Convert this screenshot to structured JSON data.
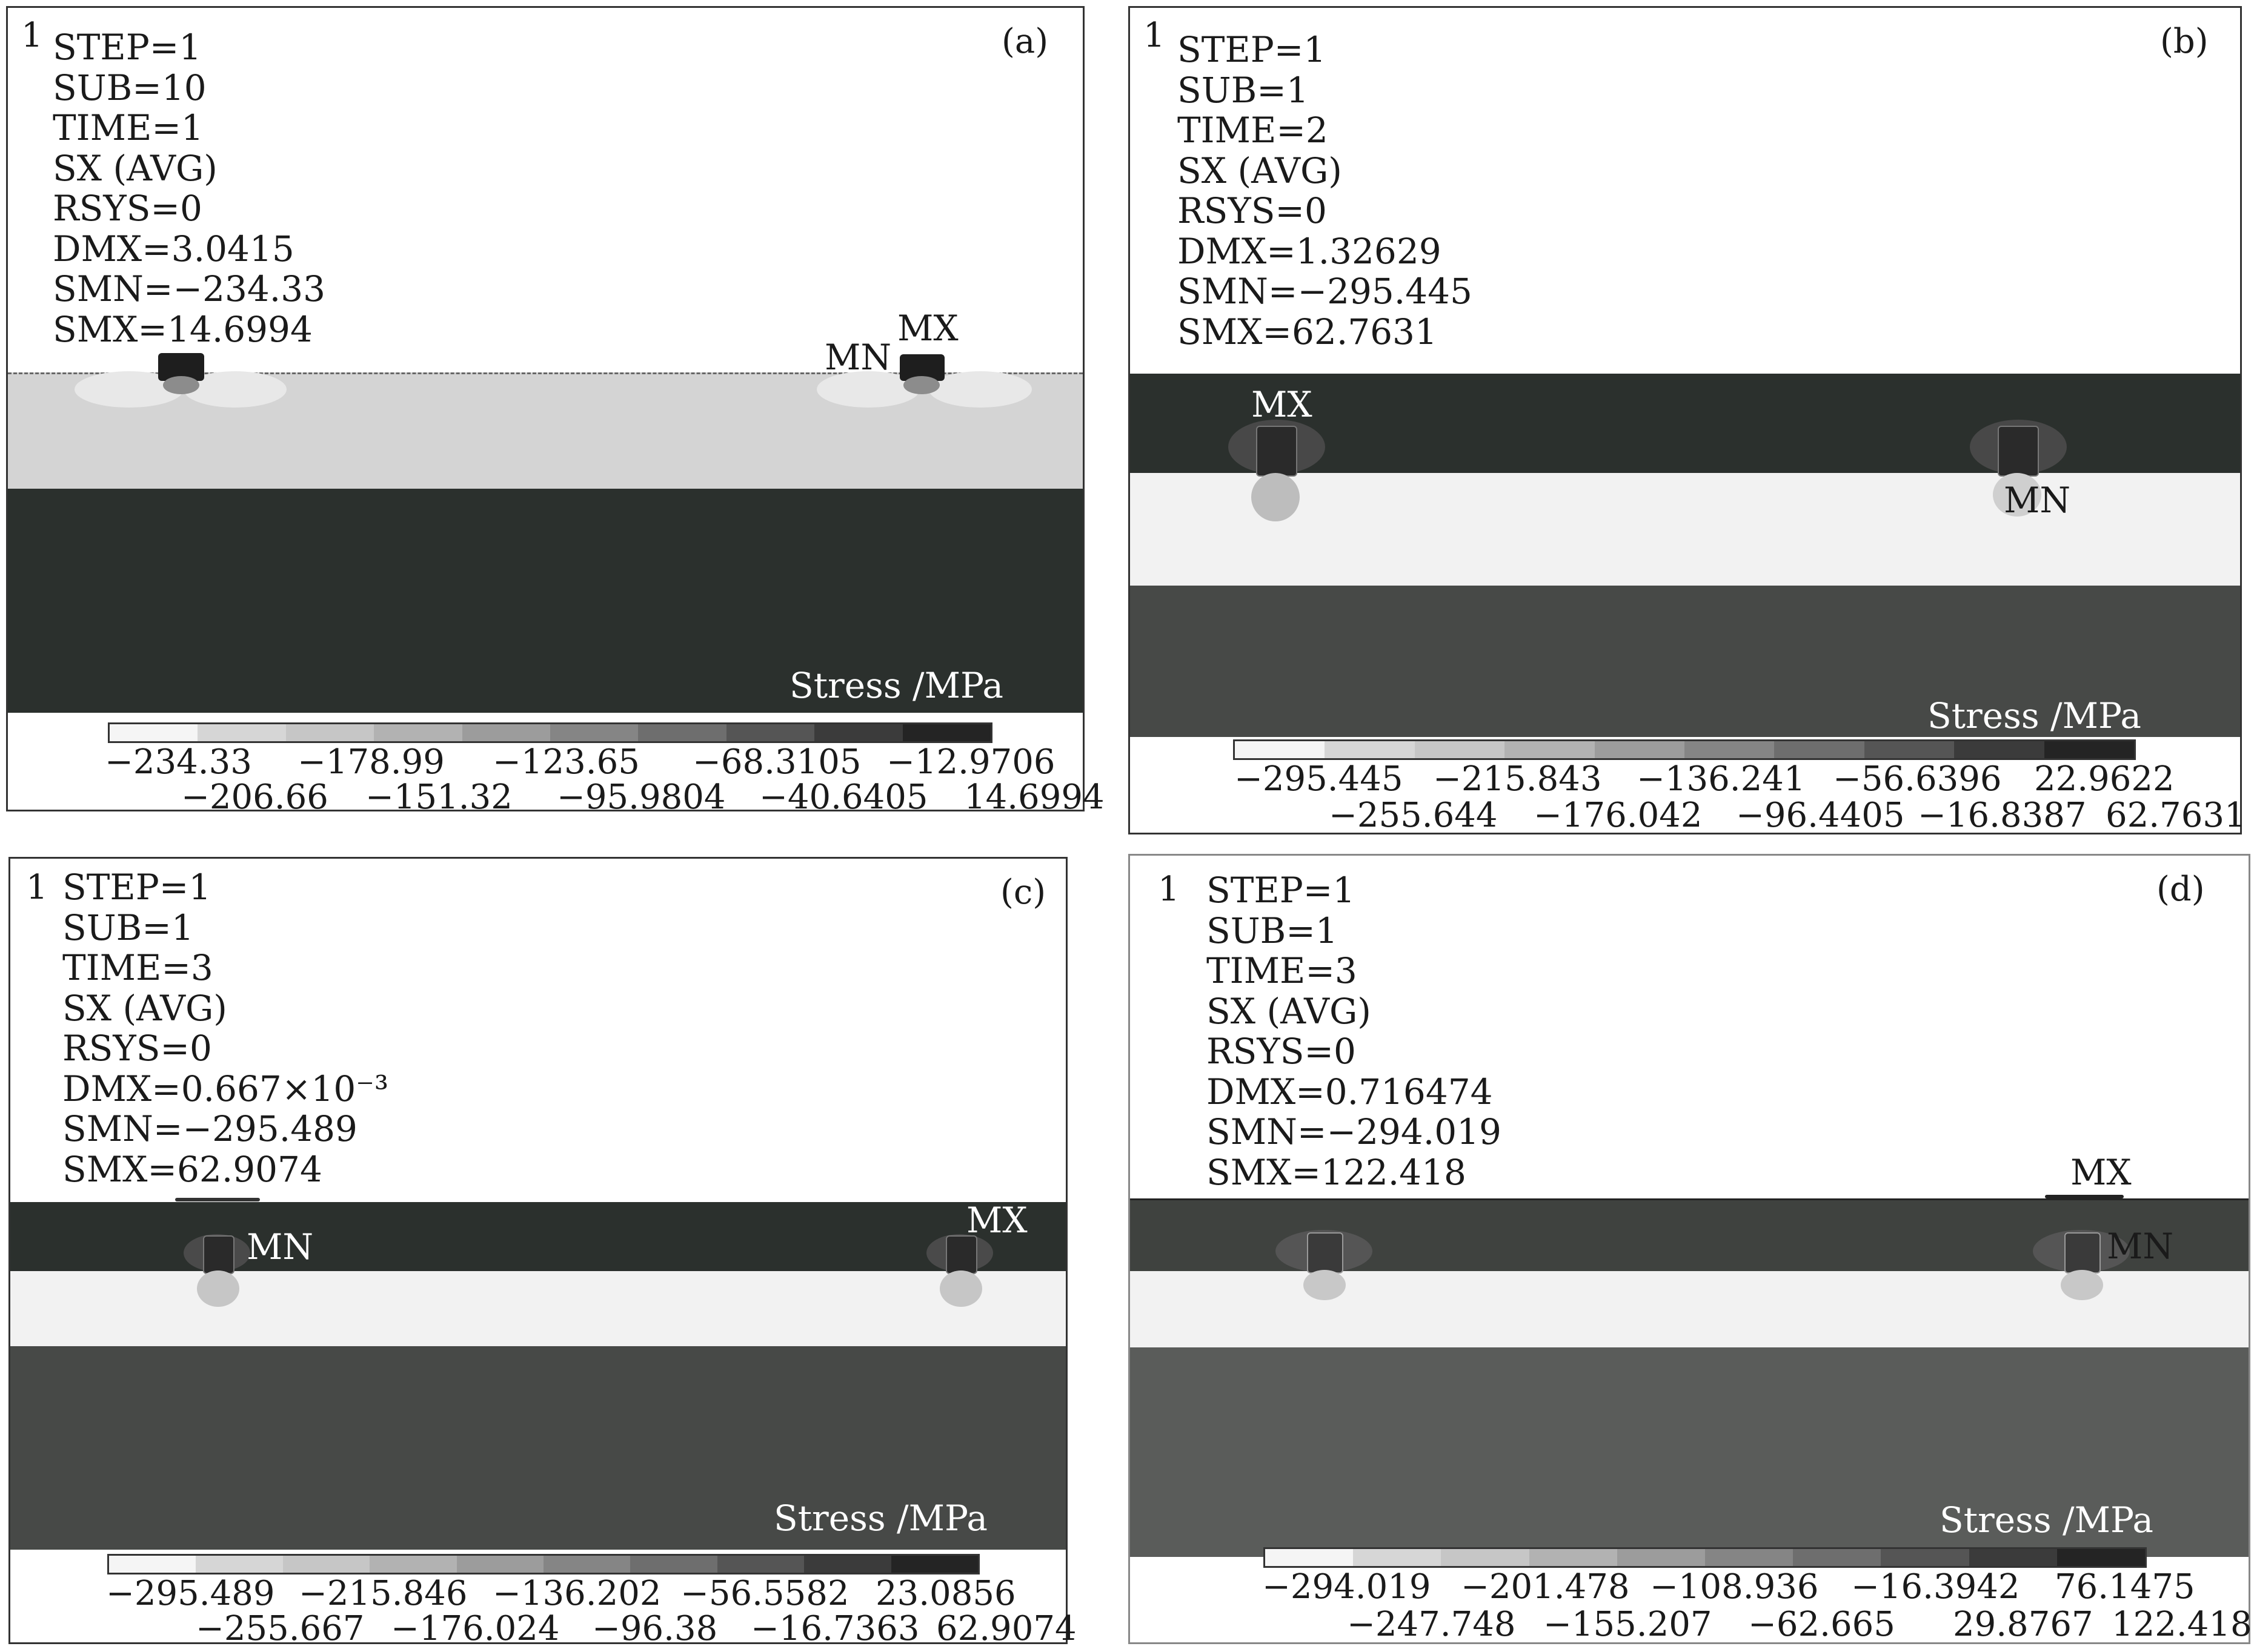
{
  "panels": [
    {
      "tag": "(a)",
      "corner": "1",
      "info": [
        "STEP=1",
        "SUB=10",
        "TIME=1",
        "SX (AVG)",
        "RSYS=0",
        "DMX=3.0415",
        "SMN=−234.33",
        "SMX=14.6994"
      ],
      "markers": {
        "mn": "MN",
        "mx": "MX"
      },
      "stress_label": "Stress /MPa",
      "legend_colors": [
        "#f5f5f5",
        "#d6d6d6",
        "#c6c6c6",
        "#b2b2b2",
        "#9c9c9c",
        "#858585",
        "#6e6e6e",
        "#555555",
        "#3b3b3b",
        "#242424"
      ],
      "legend_top": [
        "−234.33",
        "−178.99",
        "−123.65",
        "−68.3105",
        "−12.9706"
      ],
      "legend_bottom": [
        "−206.66",
        "−151.32",
        "−95.9804",
        "−40.6405",
        "14.6994"
      ]
    },
    {
      "tag": "(b)",
      "corner": "1",
      "info": [
        "STEP=1",
        "SUB=1",
        "TIME=2",
        "SX (AVG)",
        "RSYS=0",
        "DMX=1.32629",
        "SMN=−295.445",
        "SMX=62.7631"
      ],
      "markers": {
        "mn": "MN",
        "mx": "MX"
      },
      "stress_label": "Stress /MPa",
      "legend_colors": [
        "#f5f5f5",
        "#d6d6d6",
        "#c6c6c6",
        "#b2b2b2",
        "#9c9c9c",
        "#858585",
        "#6e6e6e",
        "#555555",
        "#3b3b3b",
        "#242424"
      ],
      "legend_top": [
        "−295.445",
        "−215.843",
        "−136.241",
        "−56.6396",
        "22.9622"
      ],
      "legend_bottom": [
        "−255.644",
        "−176.042",
        "−96.4405",
        "−16.8387",
        "62.7631"
      ]
    },
    {
      "tag": "(c)",
      "corner": "1",
      "info": [
        "STEP=1",
        "SUB=1",
        "TIME=3",
        "SX (AVG)",
        "RSYS=0",
        "DMX=0.667×10⁻³",
        "SMN=−295.489",
        "SMX=62.9074"
      ],
      "markers": {
        "mn": "MN",
        "mx": "MX"
      },
      "stress_label": "Stress /MPa",
      "legend_colors": [
        "#f5f5f5",
        "#d6d6d6",
        "#c6c6c6",
        "#b2b2b2",
        "#9c9c9c",
        "#858585",
        "#6e6e6e",
        "#555555",
        "#3b3b3b",
        "#242424"
      ],
      "legend_top": [
        "−295.489",
        "−215.846",
        "−136.202",
        "−56.5582",
        "23.0856"
      ],
      "legend_bottom": [
        "−255.667",
        "−176.024",
        "−96.38",
        "−16.7363",
        "62.9074"
      ]
    },
    {
      "tag": "(d)",
      "corner": "1",
      "info": [
        "STEP=1",
        "SUB=1",
        "TIME=3",
        "SX (AVG)",
        "RSYS=0",
        "DMX=0.716474",
        "SMN=−294.019",
        "SMX=122.418"
      ],
      "markers": {
        "mn": "MN",
        "mx": "MX"
      },
      "stress_label": "Stress /MPa",
      "legend_colors": [
        "#f5f5f5",
        "#d6d6d6",
        "#c6c6c6",
        "#b2b2b2",
        "#9c9c9c",
        "#858585",
        "#6e6e6e",
        "#555555",
        "#3b3b3b",
        "#242424"
      ],
      "legend_top": [
        "−294.019",
        "−201.478",
        "−108.936",
        "−16.3942",
        "76.1475"
      ],
      "legend_bottom": [
        "−247.748",
        "−155.207",
        "−62.665",
        "29.8767",
        "122.418"
      ]
    }
  ]
}
